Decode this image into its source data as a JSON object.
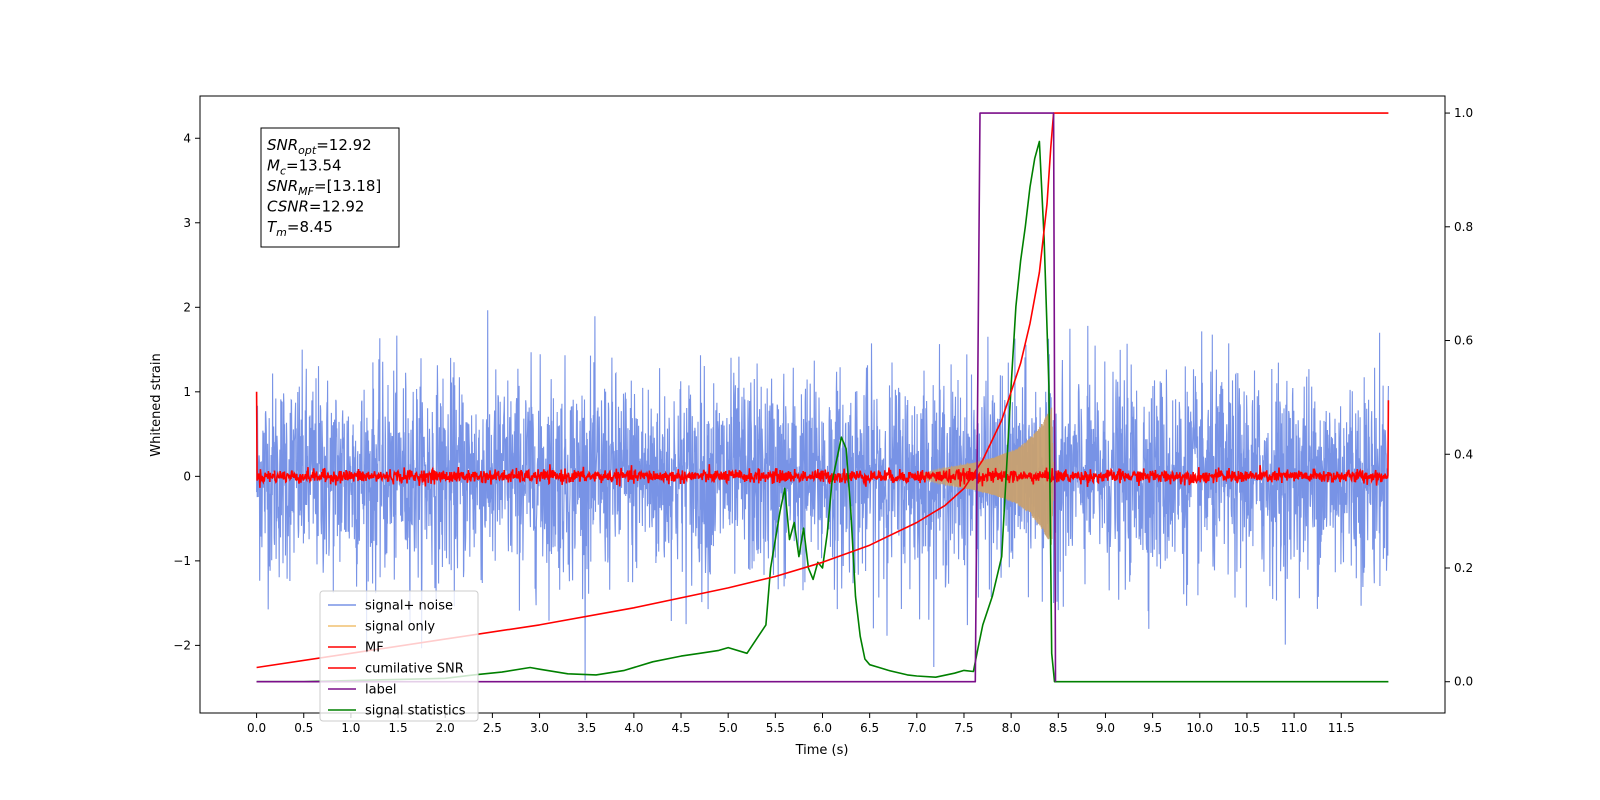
{
  "chart_data": {
    "type": "line",
    "title": "",
    "xlabel": "Time (s)",
    "ylabel": "Whitened strain",
    "xlim": [
      -0.6,
      12.6
    ],
    "ylim": [
      -2.8,
      4.5
    ],
    "y2lim": [
      -0.055,
      1.03
    ],
    "grid": false,
    "legend_position": "lower-left",
    "x_ticks": [
      "0.0",
      "0.5",
      "1.0",
      "1.5",
      "2.0",
      "2.5",
      "3.0",
      "3.5",
      "4.0",
      "4.5",
      "5.0",
      "5.5",
      "6.0",
      "6.5",
      "7.0",
      "7.5",
      "8.0",
      "8.5",
      "9.0",
      "9.5",
      "10.0",
      "10.5",
      "11.0",
      "11.5"
    ],
    "y_ticks": [
      "−2",
      "−1",
      "0",
      "1",
      "2",
      "3",
      "4"
    ],
    "y2_ticks": [
      "0.0",
      "0.2",
      "0.4",
      "0.6",
      "0.8",
      "1.0"
    ],
    "info_box": [
      {
        "sym": "SNR",
        "sub": "opt",
        "val": "=12.92"
      },
      {
        "sym": "M",
        "sub": "c",
        "val": "=13.54"
      },
      {
        "sym": "SNR",
        "sub": "MF",
        "val": "=[13.18]"
      },
      {
        "sym": "CSNR",
        "sub": "",
        "val": "=12.92"
      },
      {
        "sym": "T",
        "sub": "m",
        "val": "=8.45"
      }
    ],
    "series": [
      {
        "name": "signal+ noise",
        "color": "#7893e6",
        "axis": "left",
        "kind": "noise",
        "x_range": [
          0.0,
          12.0
        ],
        "sigma": 0.6
      },
      {
        "name": "signal only",
        "color": "#f0c070",
        "axis": "left",
        "kind": "chirp",
        "x": [
          7.0,
          7.3,
          7.6,
          7.8,
          8.0,
          8.1,
          8.2,
          8.3,
          8.38,
          8.43,
          8.45
        ],
        "envelope": [
          0.02,
          0.1,
          0.16,
          0.22,
          0.3,
          0.36,
          0.45,
          0.58,
          0.72,
          0.82,
          0.0
        ]
      },
      {
        "name": "MF",
        "color": "#ff0000",
        "axis": "left",
        "kind": "mf",
        "x_range": [
          0.0,
          12.0
        ],
        "sigma": 0.04,
        "edge_values": [
          1.0,
          0.9
        ]
      },
      {
        "name": "cumilative SNR",
        "color": "#ff0000",
        "axis": "right",
        "x": [
          0.0,
          1.0,
          2.0,
          3.0,
          4.0,
          5.0,
          5.5,
          6.0,
          6.5,
          7.0,
          7.3,
          7.5,
          7.7,
          7.9,
          8.1,
          8.2,
          8.3,
          8.38,
          8.42,
          8.45,
          8.46,
          12.0
        ],
        "y": [
          0.025,
          0.05,
          0.075,
          0.1,
          0.13,
          0.165,
          0.185,
          0.21,
          0.24,
          0.28,
          0.31,
          0.34,
          0.39,
          0.46,
          0.56,
          0.63,
          0.72,
          0.84,
          0.94,
          1.0,
          1.0,
          1.0
        ]
      },
      {
        "name": "label",
        "color": "#7b0f8a",
        "axis": "right",
        "x": [
          0.0,
          7.62,
          7.67,
          8.42,
          8.45,
          8.47
        ],
        "y": [
          0.0,
          0.0,
          1.0,
          1.0,
          1.0,
          0.0
        ]
      },
      {
        "name": "signal statistics",
        "color": "#008000",
        "axis": "right",
        "x": [
          0.0,
          0.5,
          1.0,
          1.5,
          2.0,
          2.3,
          2.6,
          2.9,
          3.0,
          3.3,
          3.6,
          3.9,
          4.2,
          4.5,
          4.7,
          4.9,
          5.0,
          5.2,
          5.4,
          5.45,
          5.55,
          5.6,
          5.65,
          5.7,
          5.75,
          5.8,
          5.85,
          5.9,
          5.95,
          6.0,
          6.05,
          6.1,
          6.2,
          6.25,
          6.3,
          6.35,
          6.4,
          6.45,
          6.5,
          6.6,
          6.7,
          6.9,
          7.0,
          7.2,
          7.4,
          7.5,
          7.6,
          7.65,
          7.7,
          7.8,
          7.9,
          8.0,
          8.05,
          8.1,
          8.15,
          8.2,
          8.25,
          8.3,
          8.35,
          8.4,
          8.43,
          8.46,
          8.5,
          9.0,
          10.0,
          11.0,
          12.0
        ],
        "y": [
          0.0,
          0.0,
          0.002,
          0.004,
          0.006,
          0.012,
          0.017,
          0.025,
          0.022,
          0.014,
          0.012,
          0.02,
          0.035,
          0.045,
          0.05,
          0.055,
          0.06,
          0.05,
          0.1,
          0.2,
          0.3,
          0.34,
          0.25,
          0.28,
          0.22,
          0.27,
          0.2,
          0.18,
          0.21,
          0.2,
          0.26,
          0.35,
          0.43,
          0.41,
          0.3,
          0.15,
          0.08,
          0.04,
          0.03,
          0.025,
          0.02,
          0.012,
          0.01,
          0.008,
          0.015,
          0.02,
          0.018,
          0.06,
          0.1,
          0.15,
          0.22,
          0.52,
          0.66,
          0.74,
          0.8,
          0.87,
          0.92,
          0.95,
          0.78,
          0.52,
          0.05,
          0.0,
          0.0,
          0.0,
          0.0,
          0.0,
          0.0
        ]
      }
    ]
  }
}
